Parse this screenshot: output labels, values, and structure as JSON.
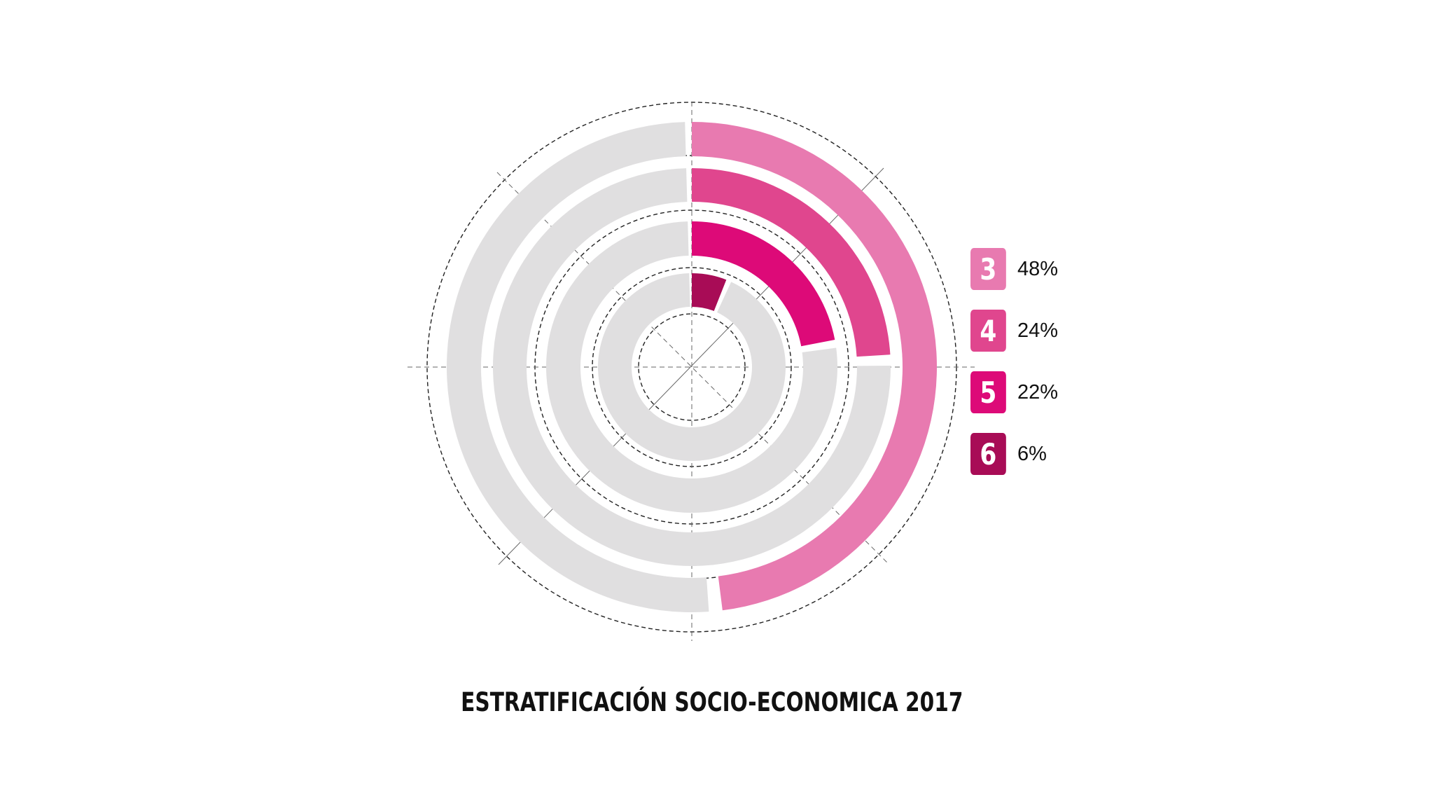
{
  "chart_data": {
    "type": "radial-bar",
    "title": "ESTRATIFICACIÓN SOCIO-ECONOMICA 2017",
    "categories": [
      "3",
      "4",
      "5",
      "6"
    ],
    "values": [
      48,
      24,
      22,
      6
    ],
    "unit": "%",
    "value_labels": [
      "48%",
      "24%",
      "22%",
      "6%"
    ],
    "max_value": 100,
    "track_color": "#e0dfe0",
    "colors": [
      "#e87ab0",
      "#e0468e",
      "#dd0a78",
      "#a80c56"
    ],
    "legend_position": "right",
    "grid": true
  }
}
